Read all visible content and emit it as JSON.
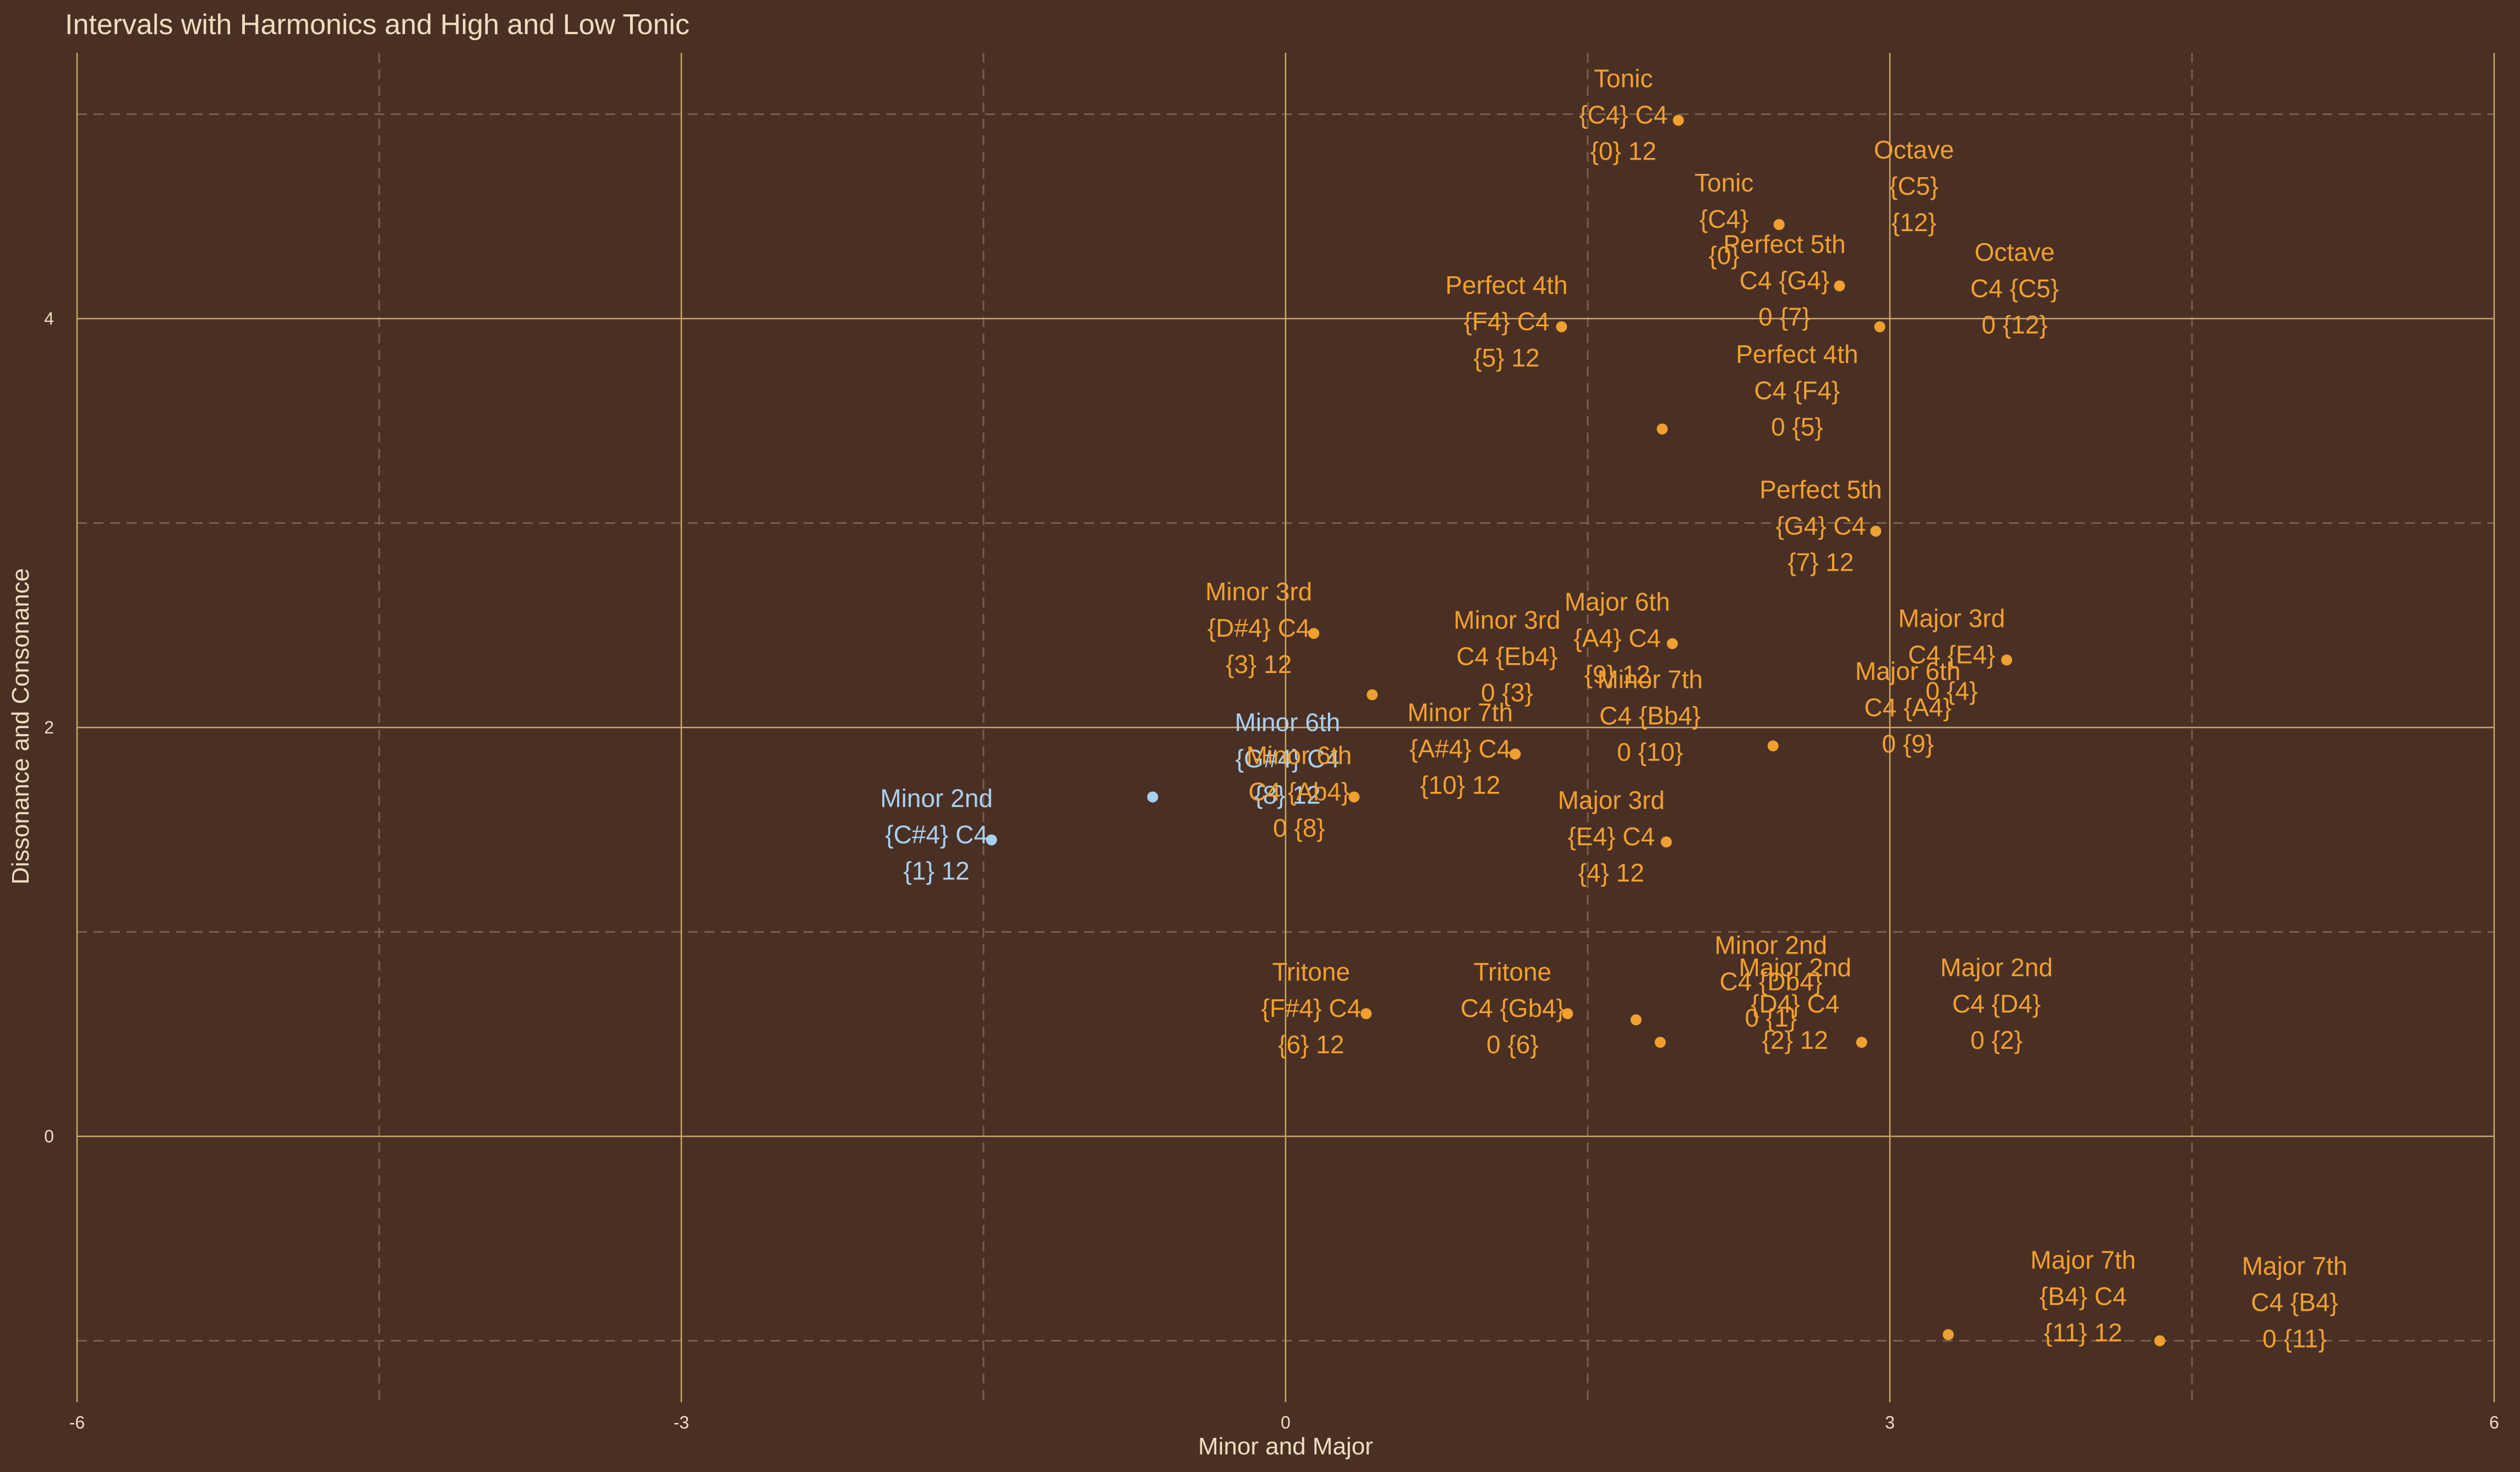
{
  "chart_data": {
    "type": "scatter",
    "title": "Intervals with Harmonics and High and Low Tonic",
    "xlabel": "Minor and Major",
    "ylabel": "Dissonance and Consonance",
    "xlim": [
      -6,
      6
    ],
    "ylim": [
      -1.3,
      5.3
    ],
    "x_ticks": [
      -6,
      -3,
      0,
      3,
      6
    ],
    "y_ticks": [
      0,
      2,
      4
    ],
    "grid": true,
    "colors": {
      "background": "#4a3024",
      "major_grid": "#c8a86a",
      "minor_grid": "#7a5e48",
      "text": "#f0dcc0",
      "orange": "#f0a030",
      "blue": "#a8d0f0"
    },
    "points": [
      {
        "x": 1.95,
        "y": 4.97,
        "color": "orange",
        "label_pos": "left",
        "lines": [
          "Tonic",
          "{C4} C4",
          "{0} 12"
        ]
      },
      {
        "x": 2.45,
        "y": 4.46,
        "color": "orange",
        "label_pos": "left",
        "lines": [
          "Tonic",
          "{C4}",
          "{0}"
        ]
      },
      {
        "x": 2.45,
        "y": 4.46,
        "color": "orange",
        "label_pos": "right",
        "lines": [
          "Octave",
          "{C5}",
          "{12}"
        ]
      },
      {
        "x": 1.37,
        "y": 3.96,
        "color": "orange",
        "label_pos": "left",
        "lines": [
          "Perfect 4th",
          "{F4} C4",
          "{5} 12"
        ]
      },
      {
        "x": 2.75,
        "y": 4.16,
        "color": "orange",
        "label_pos": "left",
        "lines": [
          "Perfect 5th",
          "C4 {G4}",
          "0 {7}"
        ]
      },
      {
        "x": 2.95,
        "y": 3.96,
        "color": "orange",
        "label_pos": "right",
        "lines": [
          "Octave",
          "C4 {C5}",
          "0 {12}"
        ]
      },
      {
        "x": 1.87,
        "y": 3.46,
        "color": "orange",
        "label_pos": "right",
        "lines": [
          "Perfect 4th",
          "C4 {F4}",
          "0 {5}"
        ]
      },
      {
        "x": 2.93,
        "y": 2.96,
        "color": "orange",
        "label_pos": "left",
        "lines": [
          "Perfect 5th",
          "{G4} C4",
          "{7} 12"
        ]
      },
      {
        "x": 1.92,
        "y": 2.41,
        "color": "orange",
        "label_pos": "left",
        "lines": [
          "Major 6th",
          "{A4} C4",
          "{9} 12"
        ]
      },
      {
        "x": 0.14,
        "y": 2.46,
        "color": "orange",
        "label_pos": "left",
        "lines": [
          "Minor 3rd",
          "{D#4} C4",
          "{3} 12"
        ]
      },
      {
        "x": 0.43,
        "y": 2.16,
        "color": "orange",
        "label_pos": "right",
        "lines": [
          "Minor 3rd",
          "C4 {Eb4}",
          "0 {3}"
        ]
      },
      {
        "x": 3.58,
        "y": 2.33,
        "color": "orange",
        "label_pos": "left",
        "lines": [
          "Major 3rd",
          "C4 {E4}",
          "0 {4}"
        ]
      },
      {
        "x": 1.14,
        "y": 1.87,
        "color": "orange",
        "label_pos": "right",
        "lines": [
          "Minor 7th",
          "C4 {Bb4}",
          "0 {10}"
        ]
      },
      {
        "x": 1.14,
        "y": 1.87,
        "color": "orange",
        "label_pos": "left",
        "lines": [
          "Minor 7th",
          "{A#4} C4",
          "{10} 12"
        ]
      },
      {
        "x": 2.42,
        "y": 1.91,
        "color": "orange",
        "label_pos": "right",
        "lines": [
          "Major 6th",
          "C4 {A4}",
          "0 {9}"
        ]
      },
      {
        "x": -0.66,
        "y": 1.66,
        "color": "blue",
        "label_pos": "right",
        "lines": [
          "Minor 6th",
          "{G#4} C4",
          "{8} 12"
        ]
      },
      {
        "x": 0.34,
        "y": 1.66,
        "color": "orange",
        "label_pos": "left",
        "lines": [
          "Minor 6th",
          "C4 {Ab4}",
          "0 {8}"
        ]
      },
      {
        "x": -1.46,
        "y": 1.45,
        "color": "blue",
        "label_pos": "left",
        "lines": [
          "Minor 2nd",
          "{C#4} C4",
          "{1} 12"
        ]
      },
      {
        "x": 1.89,
        "y": 1.44,
        "color": "orange",
        "label_pos": "left",
        "lines": [
          "Major 3rd",
          "{E4} C4",
          "{4} 12"
        ]
      },
      {
        "x": 1.74,
        "y": 0.57,
        "color": "orange",
        "label_pos": "right",
        "lines": [
          "Minor 2nd",
          "C4 {Db4}",
          "0 {1}"
        ]
      },
      {
        "x": 0.4,
        "y": 0.6,
        "color": "orange",
        "label_pos": "left",
        "lines": [
          "Tritone",
          "{F#4} C4",
          "{6} 12"
        ]
      },
      {
        "x": 1.4,
        "y": 0.6,
        "color": "orange",
        "label_pos": "left",
        "lines": [
          "Tritone",
          "C4 {Gb4}",
          "0 {6}"
        ]
      },
      {
        "x": 2.86,
        "y": 0.46,
        "color": "orange",
        "label_pos": "right",
        "lines": [
          "Major 2nd",
          "C4 {D4}",
          "0 {2}"
        ]
      },
      {
        "x": 1.86,
        "y": 0.46,
        "color": "orange",
        "label_pos": "right",
        "lines": [
          "Major 2nd",
          "{D4} C4",
          "{2} 12"
        ]
      },
      {
        "x": 3.29,
        "y": -0.97,
        "color": "orange",
        "label_pos": "right",
        "lines": [
          "Major 7th",
          "{B4} C4",
          "{11} 12"
        ]
      },
      {
        "x": 4.34,
        "y": -1.0,
        "color": "orange",
        "label_pos": "right",
        "lines": [
          "Major 7th",
          "C4 {B4}",
          "0 {11}"
        ]
      }
    ]
  }
}
